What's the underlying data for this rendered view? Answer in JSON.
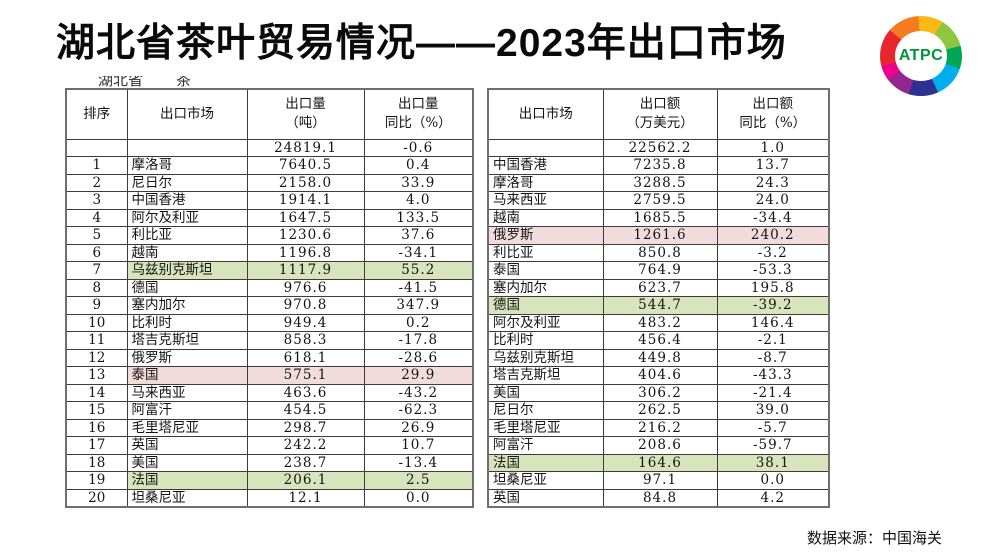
{
  "title": "湖北省茶叶贸易情况——2023年出口市场",
  "logo": {
    "text": "ATPC"
  },
  "source_note": "数据来源：中国海关",
  "clipped_text": {
    "left": "湖北省",
    "right": "茶"
  },
  "colors": {
    "green_highlight": "#d7e4bc",
    "pink_highlight": "#f2dcdb",
    "logo_text_green": "#00923f"
  },
  "left_table": {
    "name": "export-volume-table",
    "headers": [
      "排序",
      "出口市场",
      "出口量\n（吨）",
      "出口量\n同比（%）"
    ],
    "total_row": {
      "rank": "",
      "market": "",
      "value": "24819.1",
      "yoy": "-0.6"
    },
    "rows": [
      {
        "rank": "1",
        "market": "摩洛哥",
        "value": "7640.5",
        "yoy": "0.4",
        "highlight": ""
      },
      {
        "rank": "2",
        "market": "尼日尔",
        "value": "2158.0",
        "yoy": "33.9",
        "highlight": ""
      },
      {
        "rank": "3",
        "market": "中国香港",
        "value": "1914.1",
        "yoy": "4.0",
        "highlight": ""
      },
      {
        "rank": "4",
        "market": "阿尔及利亚",
        "value": "1647.5",
        "yoy": "133.5",
        "highlight": ""
      },
      {
        "rank": "5",
        "market": "利比亚",
        "value": "1230.6",
        "yoy": "37.6",
        "highlight": ""
      },
      {
        "rank": "6",
        "market": "越南",
        "value": "1196.8",
        "yoy": "-34.1",
        "highlight": ""
      },
      {
        "rank": "7",
        "market": "乌兹别克斯坦",
        "value": "1117.9",
        "yoy": "55.2",
        "highlight": "green"
      },
      {
        "rank": "8",
        "market": "德国",
        "value": "976.6",
        "yoy": "-41.5",
        "highlight": ""
      },
      {
        "rank": "9",
        "market": "塞内加尔",
        "value": "970.8",
        "yoy": "347.9",
        "highlight": ""
      },
      {
        "rank": "10",
        "market": "比利时",
        "value": "949.4",
        "yoy": "0.2",
        "highlight": ""
      },
      {
        "rank": "11",
        "market": "塔吉克斯坦",
        "value": "858.3",
        "yoy": "-17.8",
        "highlight": ""
      },
      {
        "rank": "12",
        "market": "俄罗斯",
        "value": "618.1",
        "yoy": "-28.6",
        "highlight": ""
      },
      {
        "rank": "13",
        "market": "泰国",
        "value": "575.1",
        "yoy": "29.9",
        "highlight": "pink"
      },
      {
        "rank": "14",
        "market": "马来西亚",
        "value": "463.6",
        "yoy": "-43.2",
        "highlight": ""
      },
      {
        "rank": "15",
        "market": "阿富汗",
        "value": "454.5",
        "yoy": "-62.3",
        "highlight": ""
      },
      {
        "rank": "16",
        "market": "毛里塔尼亚",
        "value": "298.7",
        "yoy": "26.9",
        "highlight": ""
      },
      {
        "rank": "17",
        "market": "英国",
        "value": "242.2",
        "yoy": "10.7",
        "highlight": ""
      },
      {
        "rank": "18",
        "market": "美国",
        "value": "238.7",
        "yoy": "-13.4",
        "highlight": ""
      },
      {
        "rank": "19",
        "market": "法国",
        "value": "206.1",
        "yoy": "2.5",
        "highlight": "green"
      },
      {
        "rank": "20",
        "market": "坦桑尼亚",
        "value": "12.1",
        "yoy": "0.0",
        "highlight": ""
      }
    ]
  },
  "right_table": {
    "name": "export-value-table",
    "headers": [
      "出口市场",
      "出口额\n（万美元）",
      "出口额\n同比（%）"
    ],
    "total_row": {
      "market": "",
      "value": "22562.2",
      "yoy": "1.0"
    },
    "rows": [
      {
        "market": "中国香港",
        "value": "7235.8",
        "yoy": "13.7",
        "highlight": ""
      },
      {
        "market": "摩洛哥",
        "value": "3288.5",
        "yoy": "24.3",
        "highlight": ""
      },
      {
        "market": "马来西亚",
        "value": "2759.5",
        "yoy": "24.0",
        "highlight": ""
      },
      {
        "market": "越南",
        "value": "1685.5",
        "yoy": "-34.4",
        "highlight": ""
      },
      {
        "market": "俄罗斯",
        "value": "1261.6",
        "yoy": "240.2",
        "highlight": "pink"
      },
      {
        "market": "利比亚",
        "value": "850.8",
        "yoy": "-3.2",
        "highlight": ""
      },
      {
        "market": "泰国",
        "value": "764.9",
        "yoy": "-53.3",
        "highlight": ""
      },
      {
        "market": "塞内加尔",
        "value": "623.7",
        "yoy": "195.8",
        "highlight": ""
      },
      {
        "market": "德国",
        "value": "544.7",
        "yoy": "-39.2",
        "highlight": "green"
      },
      {
        "market": "阿尔及利亚",
        "value": "483.2",
        "yoy": "146.4",
        "highlight": ""
      },
      {
        "market": "比利时",
        "value": "456.4",
        "yoy": "-2.1",
        "highlight": ""
      },
      {
        "market": "乌兹别克斯坦",
        "value": "449.8",
        "yoy": "-8.7",
        "highlight": ""
      },
      {
        "market": "塔吉克斯坦",
        "value": "404.6",
        "yoy": "-43.3",
        "highlight": ""
      },
      {
        "market": "美国",
        "value": "306.2",
        "yoy": "-21.4",
        "highlight": ""
      },
      {
        "market": "尼日尔",
        "value": "262.5",
        "yoy": "39.0",
        "highlight": ""
      },
      {
        "market": "毛里塔尼亚",
        "value": "216.2",
        "yoy": "-5.7",
        "highlight": ""
      },
      {
        "market": "阿富汗",
        "value": "208.6",
        "yoy": "-59.7",
        "highlight": ""
      },
      {
        "market": "法国",
        "value": "164.6",
        "yoy": "38.1",
        "highlight": "green"
      },
      {
        "market": "坦桑尼亚",
        "value": "97.1",
        "yoy": "0.0",
        "highlight": ""
      },
      {
        "market": "英国",
        "value": "84.8",
        "yoy": "4.2",
        "highlight": ""
      }
    ]
  }
}
